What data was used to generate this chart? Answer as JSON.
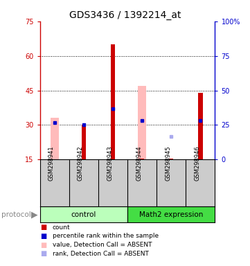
{
  "title": "GDS3436 / 1392214_at",
  "samples": [
    "GSM298941",
    "GSM298942",
    "GSM298943",
    "GSM298944",
    "GSM298945",
    "GSM298946"
  ],
  "groups": [
    {
      "name": "control",
      "indices": [
        0,
        1,
        2
      ],
      "color": "#bbffbb"
    },
    {
      "name": "Math2 expression",
      "indices": [
        3,
        4,
        5
      ],
      "color": "#44dd44"
    }
  ],
  "ylim_left": [
    15,
    75
  ],
  "ylim_right": [
    0,
    100
  ],
  "yticks_left": [
    15,
    30,
    45,
    60,
    75
  ],
  "yticks_right": [
    0,
    25,
    50,
    75,
    100
  ],
  "ytick_labels_right": [
    "0",
    "25",
    "50",
    "75",
    "100%"
  ],
  "baseline": 15,
  "red_bar_tops": [
    15.2,
    30,
    65,
    15.5,
    15.5,
    44
  ],
  "pink_bar_tops": [
    33,
    15,
    15,
    47,
    15,
    15
  ],
  "blue_sq_y": [
    31,
    30,
    37,
    32,
    -1,
    32
  ],
  "blue_sq_present": [
    true,
    true,
    true,
    true,
    false,
    true
  ],
  "light_blue_sq_y": [
    -1,
    -1,
    -1,
    -1,
    25,
    -1
  ],
  "light_blue_sq_present": [
    false,
    false,
    false,
    false,
    true,
    false
  ],
  "red_color": "#cc0000",
  "pink_color": "#ffbbbb",
  "blue_color": "#0000cc",
  "light_blue_color": "#aaaaee",
  "bg_color": "#ffffff",
  "label_area_bg": "#cccccc",
  "left_axis_color": "#cc0000",
  "right_axis_color": "#0000cc",
  "legend_items": [
    {
      "color": "#cc0000",
      "label": "count"
    },
    {
      "color": "#0000cc",
      "label": "percentile rank within the sample"
    },
    {
      "color": "#ffbbbb",
      "label": "value, Detection Call = ABSENT"
    },
    {
      "color": "#aaaaee",
      "label": "rank, Detection Call = ABSENT"
    }
  ]
}
